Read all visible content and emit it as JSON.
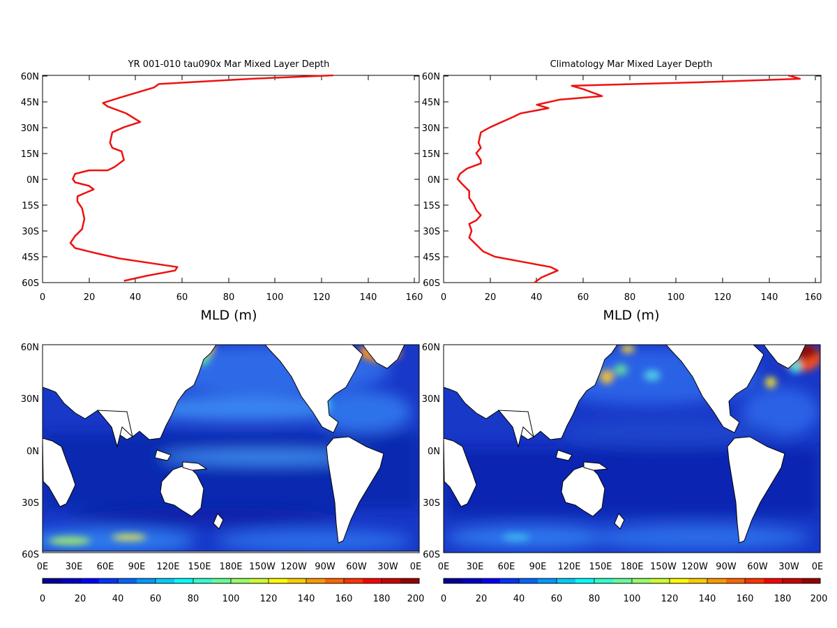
{
  "charts": [
    {
      "title": "YR 001-010 tau090x Mar Mixed Layer Depth",
      "xlabel": "MLD (m)",
      "x_ticks": [
        "0",
        "20",
        "40",
        "60",
        "80",
        "100",
        "120",
        "140",
        "160"
      ],
      "y_ticks": [
        "60N",
        "45N",
        "30N",
        "15N",
        "0N",
        "15S",
        "30S",
        "45S",
        "60S"
      ]
    },
    {
      "title": "Climatology Mar Mixed Layer Depth",
      "xlabel": "MLD (m)",
      "x_ticks": [
        "0",
        "20",
        "40",
        "60",
        "80",
        "100",
        "120",
        "140",
        "160"
      ],
      "y_ticks": [
        "60N",
        "45N",
        "30N",
        "15N",
        "0N",
        "15S",
        "30S",
        "45S",
        "60S"
      ]
    }
  ],
  "maps": [
    {
      "lon_ticks": [
        "0E",
        "30E",
        "60E",
        "90E",
        "120E",
        "150E",
        "180E",
        "150W",
        "120W",
        "90W",
        "60W",
        "30W",
        "0E"
      ],
      "lat_ticks": [
        "60N",
        "30N",
        "0N",
        "30S",
        "60S"
      ],
      "colorbar_ticks": [
        "0",
        "20",
        "40",
        "60",
        "80",
        "100",
        "120",
        "140",
        "160",
        "180",
        "200"
      ]
    },
    {
      "lon_ticks": [
        "0E",
        "30E",
        "60E",
        "90E",
        "120E",
        "150E",
        "180E",
        "150W",
        "120W",
        "90W",
        "60W",
        "30W",
        "0E"
      ],
      "lat_ticks": [
        "60N",
        "30N",
        "0N",
        "30S",
        "60S"
      ],
      "colorbar_ticks": [
        "0",
        "20",
        "40",
        "60",
        "80",
        "100",
        "120",
        "140",
        "160",
        "180",
        "200"
      ]
    }
  ],
  "colors": {
    "profile_line": "#ee1111",
    "map_background": "#1838c8",
    "land": "#ffffff"
  },
  "chart_data": [
    {
      "type": "line",
      "title": "YR 001-010 tau090x Mar Mixed Layer Depth",
      "xlabel": "MLD (m)",
      "xlim": [
        0,
        162
      ],
      "ylim": [
        -60,
        60
      ],
      "series": [
        {
          "x_units": "m",
          "y_units": "degrees latitude",
          "points": [
            [
              125,
              60
            ],
            [
              90,
              58
            ],
            [
              50,
              55
            ],
            [
              48,
              53
            ],
            [
              33,
              47
            ],
            [
              26,
              44
            ],
            [
              28,
              42
            ],
            [
              36,
              38
            ],
            [
              42,
              33
            ],
            [
              35,
              30
            ],
            [
              30,
              27
            ],
            [
              29,
              21
            ],
            [
              30,
              18
            ],
            [
              34,
              16
            ],
            [
              35,
              11
            ],
            [
              31,
              7
            ],
            [
              28,
              5
            ],
            [
              20,
              5
            ],
            [
              14,
              3
            ],
            [
              13,
              0
            ],
            [
              14,
              -2
            ],
            [
              20,
              -4
            ],
            [
              22,
              -6
            ],
            [
              15,
              -10
            ],
            [
              15,
              -13
            ],
            [
              17,
              -17
            ],
            [
              18,
              -23
            ],
            [
              17,
              -29
            ],
            [
              14,
              -33
            ],
            [
              12,
              -37
            ],
            [
              14,
              -40
            ],
            [
              23,
              -43
            ],
            [
              33,
              -46
            ],
            [
              48,
              -49
            ],
            [
              58,
              -51
            ],
            [
              57,
              -53
            ],
            [
              45,
              -56
            ],
            [
              35,
              -59
            ]
          ]
        }
      ]
    },
    {
      "type": "line",
      "title": "Climatology Mar Mixed Layer Depth",
      "xlabel": "MLD (m)",
      "xlim": [
        0,
        162
      ],
      "ylim": [
        -60,
        60
      ],
      "series": [
        {
          "x_units": "m",
          "y_units": "degrees latitude",
          "points": [
            [
              148,
              60
            ],
            [
              153,
              58
            ],
            [
              110,
              56
            ],
            [
              55,
              54
            ],
            [
              60,
              52
            ],
            [
              68,
              48
            ],
            [
              50,
              46
            ],
            [
              40,
              43
            ],
            [
              45,
              41
            ],
            [
              33,
              38
            ],
            [
              30,
              36
            ],
            [
              25,
              33
            ],
            [
              20,
              30
            ],
            [
              16,
              27
            ],
            [
              15,
              21
            ],
            [
              16,
              18
            ],
            [
              14,
              15
            ],
            [
              16,
              11
            ],
            [
              16,
              9
            ],
            [
              10,
              6
            ],
            [
              7,
              3
            ],
            [
              6,
              0
            ],
            [
              8,
              -3
            ],
            [
              11,
              -7
            ],
            [
              11,
              -11
            ],
            [
              13,
              -15
            ],
            [
              14,
              -18
            ],
            [
              16,
              -21
            ],
            [
              14,
              -24
            ],
            [
              11,
              -26
            ],
            [
              12,
              -30
            ],
            [
              11,
              -34
            ],
            [
              14,
              -38
            ],
            [
              17,
              -42
            ],
            [
              22,
              -45
            ],
            [
              34,
              -48
            ],
            [
              46,
              -51
            ],
            [
              49,
              -53
            ],
            [
              42,
              -57
            ],
            [
              39,
              -60
            ]
          ]
        }
      ]
    },
    {
      "type": "heatmap",
      "xlabel": "",
      "ylabel": "",
      "colorbar_range": [
        0,
        200
      ],
      "lon_range": "0E-0E",
      "lat_range": [
        -60,
        60
      ]
    },
    {
      "type": "heatmap",
      "xlabel": "",
      "ylabel": "",
      "colorbar_range": [
        0,
        200
      ],
      "lon_range": "0E-0E",
      "lat_range": [
        -60,
        60
      ]
    }
  ]
}
